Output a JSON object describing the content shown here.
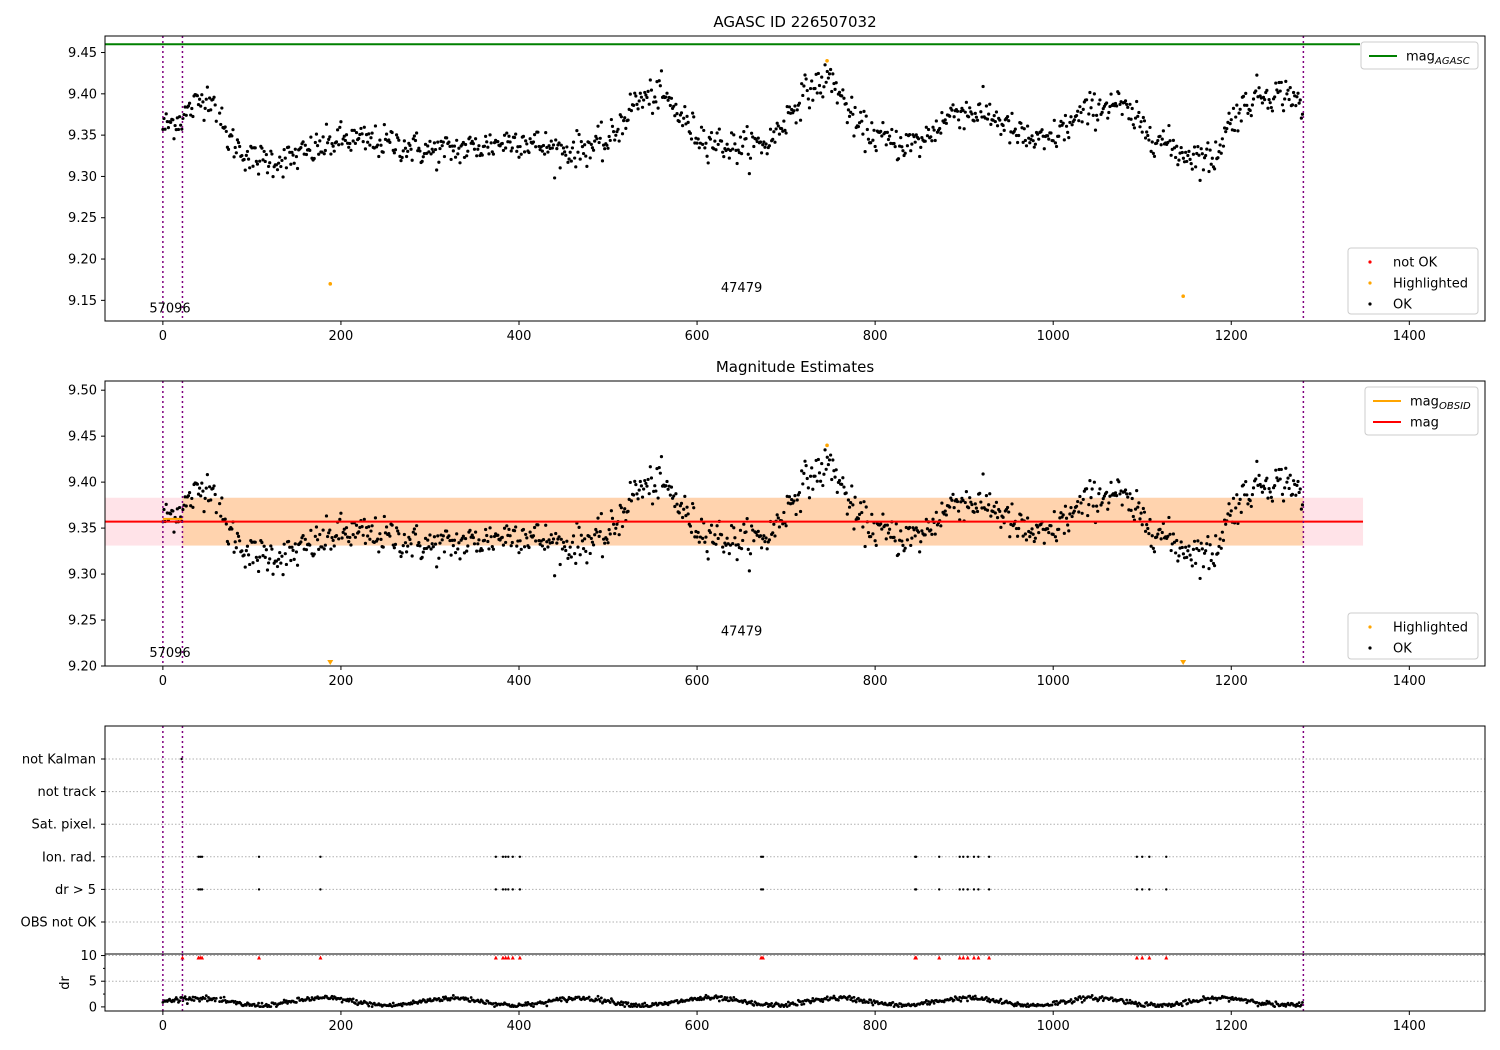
{
  "chart_data": [
    {
      "type": "scatter",
      "title": "AGASC ID 226507032",
      "xlim": [
        -65,
        1485
      ],
      "ylim": [
        9.125,
        9.47
      ],
      "xticks": [
        0,
        200,
        400,
        600,
        800,
        1000,
        1200,
        1400
      ],
      "yticks": [
        9.15,
        9.2,
        9.25,
        9.3,
        9.35,
        9.4,
        9.45
      ],
      "ytick_labels": [
        "9.15",
        "9.20",
        "9.25",
        "9.30",
        "9.35",
        "9.40",
        "9.45"
      ],
      "mag_agasc": 9.46,
      "obsid_boundaries": [
        0,
        22,
        1281
      ],
      "obsid_labels": [
        {
          "x": 8,
          "y": 9.135,
          "text": "57096"
        },
        {
          "x": 650,
          "y": 9.16,
          "text": "47479"
        }
      ],
      "highlighted_points": [
        {
          "x": 188,
          "y": 9.17
        },
        {
          "x": 746,
          "y": 9.44
        },
        {
          "x": 1146,
          "y": 9.155
        }
      ],
      "ok_series_profile": {
        "x": [
          0,
          20,
          40,
          55,
          70,
          100,
          140,
          200,
          260,
          300,
          350,
          400,
          450,
          500,
          530,
          560,
          600,
          640,
          680,
          720,
          750,
          780,
          820,
          850,
          890,
          930,
          960,
          990,
          1040,
          1070,
          1100,
          1140,
          1180,
          1200,
          1230,
          1270,
          1281
        ],
        "y": [
          9.36,
          9.37,
          9.39,
          9.4,
          9.35,
          9.32,
          9.32,
          9.345,
          9.34,
          9.33,
          9.335,
          9.345,
          9.33,
          9.34,
          9.39,
          9.4,
          9.35,
          9.335,
          9.34,
          9.4,
          9.42,
          9.36,
          9.34,
          9.34,
          9.38,
          9.375,
          9.35,
          9.34,
          9.38,
          9.39,
          9.36,
          9.33,
          9.32,
          9.37,
          9.4,
          9.4,
          9.37
        ]
      },
      "legends": [
        {
          "position": "top-right",
          "entries": [
            {
              "label": "mag",
              "sub": "AGASC",
              "color": "#008000",
              "kind": "line"
            }
          ]
        },
        {
          "position": "bottom-right",
          "entries": [
            {
              "label": "not OK",
              "color": "#ff0000",
              "kind": "point"
            },
            {
              "label": "Highlighted",
              "color": "#ffa500",
              "kind": "point"
            },
            {
              "label": "OK",
              "color": "#000000",
              "kind": "point"
            }
          ]
        }
      ]
    },
    {
      "type": "scatter",
      "title": "Magnitude Estimates",
      "xlim": [
        -65,
        1485
      ],
      "ylim": [
        9.2,
        9.51
      ],
      "xticks": [
        0,
        200,
        400,
        600,
        800,
        1000,
        1200,
        1400
      ],
      "yticks": [
        9.2,
        9.25,
        9.3,
        9.35,
        9.4,
        9.45,
        9.5
      ],
      "ytick_labels": [
        "9.20",
        "9.25",
        "9.30",
        "9.35",
        "9.40",
        "9.45",
        "9.50"
      ],
      "mag_line": {
        "value": 9.357,
        "color": "#ff0000",
        "x_range": [
          -65,
          1348
        ]
      },
      "mag_band": {
        "low": 9.331,
        "high": 9.383,
        "color": "#ffc0cb",
        "x_range": [
          -65,
          1348
        ]
      },
      "obsid_band": {
        "low": 9.331,
        "high": 9.383,
        "color": "#ffa500",
        "x_range": [
          22,
          1281
        ]
      },
      "obsid_mag_short": {
        "value": 9.36,
        "color": "#ffa500",
        "x_range": [
          0,
          22
        ]
      },
      "obsid_boundaries": [
        0,
        22,
        1281
      ],
      "obsid_labels": [
        {
          "x": 8,
          "y": 9.21,
          "text": "57096"
        },
        {
          "x": 650,
          "y": 9.233,
          "text": "47479"
        }
      ],
      "highlighted_points": [
        {
          "x": 746,
          "y": 9.44
        }
      ],
      "offscale_markers": [
        {
          "x": 188
        },
        {
          "x": 1146
        }
      ],
      "legends": [
        {
          "position": "top-right",
          "entries": [
            {
              "label": "mag",
              "sub": "OBSID",
              "color": "#ffa500",
              "kind": "line"
            },
            {
              "label": "mag",
              "color": "#ff0000",
              "kind": "line"
            }
          ]
        },
        {
          "position": "bottom-right",
          "entries": [
            {
              "label": "Highlighted",
              "color": "#ffa500",
              "kind": "point"
            },
            {
              "label": "OK",
              "color": "#000000",
              "kind": "point"
            }
          ]
        }
      ]
    },
    {
      "type": "scatter",
      "xlim": [
        -65,
        1485
      ],
      "xticks": [
        0,
        200,
        400,
        600,
        800,
        1000,
        1200,
        1400
      ],
      "flag_rows": [
        "not Kalman",
        "not track",
        "Sat. pixel.",
        "Ion. rad.",
        "dr > 5",
        "OBS not OK"
      ],
      "flag_points": {
        "not Kalman": [
          21
        ],
        "Ion. rad.": [
          40,
          42,
          44,
          108,
          177,
          374,
          382,
          385,
          388,
          393,
          401,
          672,
          674,
          845,
          846,
          872,
          895,
          899,
          904,
          911,
          916,
          928,
          1094,
          1100,
          1108,
          1127
        ],
        "dr > 5": [
          40,
          42,
          44,
          108,
          177,
          374,
          382,
          385,
          388,
          393,
          401,
          672,
          674,
          845,
          846,
          872,
          895,
          899,
          904,
          911,
          916,
          928,
          1094,
          1100,
          1108,
          1127
        ]
      },
      "obsid_boundaries": [
        0,
        22,
        1281
      ],
      "dr_ylabel": "dr",
      "dr_yticks": [
        0,
        5,
        10
      ],
      "dr_ylim": [
        -0.8,
        10.3
      ],
      "dr_clipped_x": [
        22,
        40,
        42,
        44,
        108,
        177,
        374,
        382,
        385,
        388,
        393,
        401,
        672,
        674,
        845,
        846,
        872,
        895,
        899,
        904,
        911,
        916,
        928,
        1094,
        1100,
        1108,
        1127
      ]
    }
  ]
}
